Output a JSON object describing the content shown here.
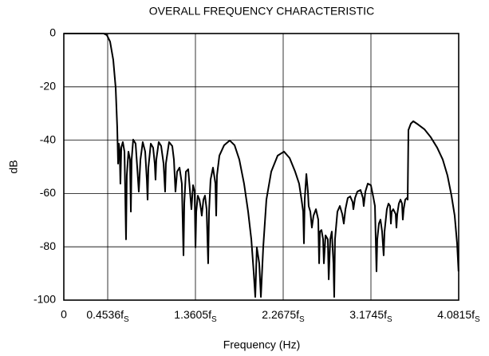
{
  "chart_data": {
    "type": "line",
    "title": "OVERALL FREQUENCY CHARACTERISTIC",
    "x_label": "Frequency (Hz)",
    "y_label": "dB",
    "color": "#000000",
    "grid": true,
    "xlim": [
      0,
      4.0815
    ],
    "ylim": [
      -100,
      0
    ],
    "xticks": [
      0,
      {
        "value": 0.4536,
        "label": "0.4536fS"
      },
      {
        "value": 1.3605,
        "label": "1.3605fS"
      },
      {
        "value": 2.2675,
        "label": "2.2675fS"
      },
      {
        "value": 3.1745,
        "label": "3.1745fS"
      },
      {
        "value": 4.0815,
        "label": "4.0815fS"
      }
    ],
    "yticks": [
      0,
      -20,
      -40,
      -60,
      -80,
      -100
    ],
    "x": [
      0,
      0.412,
      0.445,
      0.478,
      0.511,
      0.536,
      0.552,
      0.561,
      0.569,
      0.577,
      0.585,
      0.594,
      0.61,
      0.627,
      0.643,
      0.651,
      0.668,
      0.684,
      0.693,
      0.701,
      0.717,
      0.742,
      0.759,
      0.775,
      0.792,
      0.816,
      0.841,
      0.858,
      0.866,
      0.874,
      0.899,
      0.923,
      0.94,
      0.948,
      0.956,
      0.981,
      1.006,
      1.031,
      1.047,
      1.055,
      1.088,
      1.121,
      1.138,
      1.154,
      1.171,
      1.196,
      1.22,
      1.237,
      1.245,
      1.262,
      1.286,
      1.311,
      1.319,
      1.336,
      1.352,
      1.361,
      1.369,
      1.385,
      1.402,
      1.418,
      1.426,
      1.443,
      1.459,
      1.476,
      1.492,
      1.501,
      1.517,
      1.542,
      1.567,
      1.575,
      1.583,
      1.608,
      1.657,
      1.715,
      1.765,
      1.814,
      1.863,
      1.905,
      1.938,
      1.962,
      1.979,
      1.995,
      2.02,
      2.037,
      2.061,
      2.094,
      2.144,
      2.21,
      2.276,
      2.334,
      2.391,
      2.432,
      2.457,
      2.474,
      2.482,
      2.49,
      2.507,
      2.523,
      2.531,
      2.548,
      2.564,
      2.581,
      2.606,
      2.63,
      2.639,
      2.647,
      2.663,
      2.68,
      2.688,
      2.705,
      2.729,
      2.738,
      2.754,
      2.77,
      2.787,
      2.795,
      2.803,
      2.828,
      2.853,
      2.878,
      2.894,
      2.911,
      2.935,
      2.96,
      2.985,
      2.993,
      3.01,
      3.034,
      3.067,
      3.092,
      3.1,
      3.117,
      3.142,
      3.174,
      3.199,
      3.216,
      3.232,
      3.24,
      3.257,
      3.273,
      3.29,
      3.306,
      3.315,
      3.339,
      3.356,
      3.372,
      3.381,
      3.389,
      3.405,
      3.43,
      3.438,
      3.447,
      3.463,
      3.48,
      3.496,
      3.504,
      3.513,
      3.529,
      3.546,
      3.554,
      3.562,
      3.587,
      3.612,
      3.661,
      3.727,
      3.793,
      3.859,
      3.917,
      3.966,
      4.007,
      4.04,
      4.065,
      4.08
    ],
    "values": [
      0,
      0,
      -0.6,
      -3.0,
      -9.9,
      -20.4,
      -35.3,
      -48.8,
      -41.3,
      -43.7,
      -56.3,
      -42.8,
      -40.7,
      -44.3,
      -77.2,
      -53.3,
      -44.3,
      -47.3,
      -66.8,
      -47.3,
      -39.8,
      -41.3,
      -50.3,
      -59.3,
      -47.3,
      -40.7,
      -44.3,
      -54.8,
      -62.3,
      -50.3,
      -41.3,
      -42.8,
      -48.8,
      -54.8,
      -47.3,
      -40.7,
      -42.2,
      -48.8,
      -59.3,
      -48.8,
      -40.7,
      -42.2,
      -47.3,
      -59.3,
      -51.8,
      -50.3,
      -56.3,
      -83.2,
      -63.8,
      -51.8,
      -50.9,
      -62.3,
      -65.9,
      -56.9,
      -59.3,
      -80.2,
      -66.8,
      -60.8,
      -62.3,
      -65.9,
      -68.3,
      -62.3,
      -60.8,
      -65.9,
      -86.2,
      -66.8,
      -54.8,
      -50.3,
      -56.3,
      -68.3,
      -53.3,
      -45.8,
      -41.9,
      -40.1,
      -41.9,
      -47.3,
      -56.3,
      -66.8,
      -77.2,
      -89.2,
      -98.8,
      -80.2,
      -86.2,
      -98.8,
      -80.2,
      -62.3,
      -51.8,
      -45.8,
      -44.3,
      -46.7,
      -51.8,
      -56.3,
      -62.3,
      -66.8,
      -78.7,
      -62.3,
      -52.7,
      -59.3,
      -64.7,
      -66.8,
      -72.8,
      -68.3,
      -65.9,
      -69.8,
      -86.2,
      -74.3,
      -73.7,
      -77.2,
      -86.2,
      -75.7,
      -77.2,
      -92.2,
      -77.2,
      -74.3,
      -86.2,
      -98.8,
      -77.2,
      -66.8,
      -64.7,
      -67.7,
      -71.3,
      -65.9,
      -61.7,
      -61.1,
      -63.2,
      -65.9,
      -61.7,
      -59.3,
      -58.7,
      -61.7,
      -64.7,
      -59.3,
      -56.3,
      -56.9,
      -61.4,
      -64.7,
      -89.2,
      -77.2,
      -71.3,
      -69.8,
      -74.3,
      -83.2,
      -74.3,
      -65.9,
      -63.8,
      -64.7,
      -71.3,
      -66.8,
      -65.9,
      -67.7,
      -72.8,
      -67.7,
      -63.8,
      -62.3,
      -63.8,
      -69.8,
      -65.9,
      -62.3,
      -61.7,
      -62.3,
      -36.2,
      -33.8,
      -32.9,
      -34.1,
      -35.9,
      -38.9,
      -42.8,
      -47.3,
      -53.3,
      -60.8,
      -68.3,
      -78.7,
      -89.2
    ]
  }
}
